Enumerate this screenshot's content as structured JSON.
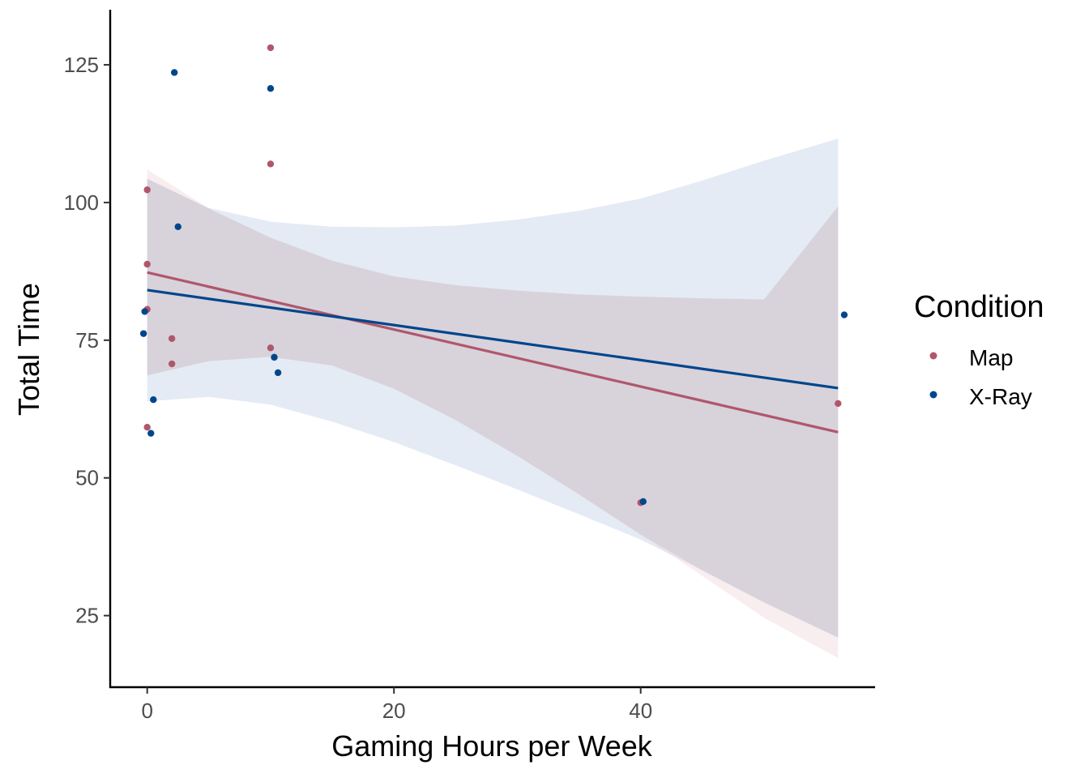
{
  "chart_data": {
    "type": "scatter",
    "title": "",
    "xlabel": "Gaming Hours per Week",
    "ylabel": "Total Time",
    "xlim": [
      -3,
      59
    ],
    "ylim": [
      12,
      135
    ],
    "x_ticks": [
      0,
      20,
      40
    ],
    "x_tick_labels": [
      "0",
      "20",
      "40"
    ],
    "y_ticks": [
      25,
      50,
      75,
      100,
      125
    ],
    "y_tick_labels": [
      "25",
      "50",
      "75",
      "100",
      "125"
    ],
    "grid": false,
    "legend": {
      "title": "Condition",
      "position": "right",
      "entries": [
        "Map",
        "X-Ray"
      ]
    },
    "series": [
      {
        "name": "Map",
        "color": "#b0576b",
        "points": [
          {
            "x": 0,
            "y": 102.3
          },
          {
            "x": 0,
            "y": 88.8
          },
          {
            "x": 0,
            "y": 80.6
          },
          {
            "x": 0,
            "y": 59.2
          },
          {
            "x": 2,
            "y": 75.3
          },
          {
            "x": 2,
            "y": 70.7
          },
          {
            "x": 10,
            "y": 128.1
          },
          {
            "x": 10,
            "y": 107.0
          },
          {
            "x": 10,
            "y": 73.6
          },
          {
            "x": 40,
            "y": 45.5
          },
          {
            "x": 56,
            "y": 63.5
          }
        ],
        "fit": {
          "x": [
            0,
            56
          ],
          "y": [
            87.3,
            58.3
          ]
        },
        "ci": {
          "x": [
            0,
            5,
            10,
            15,
            20,
            25,
            30,
            35,
            40,
            45,
            50,
            56
          ],
          "lower": [
            68.6,
            71.2,
            72.0,
            70.4,
            66.2,
            60.5,
            54.0,
            47.0,
            39.7,
            32.2,
            24.6,
            17.3
          ],
          "upper": [
            106.0,
            98.9,
            93.6,
            89.4,
            86.6,
            85.0,
            84.0,
            83.3,
            82.9,
            82.6,
            82.4,
            99.3
          ]
        }
      },
      {
        "name": "X-Ray",
        "color": "#00468b",
        "points": [
          {
            "x": -0.2,
            "y": 80.2
          },
          {
            "x": -0.3,
            "y": 76.2
          },
          {
            "x": 0.3,
            "y": 58.1
          },
          {
            "x": 0.5,
            "y": 64.2
          },
          {
            "x": 2.2,
            "y": 123.6
          },
          {
            "x": 2.5,
            "y": 95.6
          },
          {
            "x": 10,
            "y": 120.7
          },
          {
            "x": 10.3,
            "y": 71.9
          },
          {
            "x": 10.6,
            "y": 69.1
          },
          {
            "x": 40.2,
            "y": 45.7
          },
          {
            "x": 56.5,
            "y": 79.6
          }
        ],
        "fit": {
          "x": [
            0,
            56
          ],
          "y": [
            84.1,
            66.3
          ]
        },
        "ci": {
          "x": [
            0,
            5,
            10,
            15,
            20,
            25,
            30,
            35,
            40,
            45,
            50,
            56
          ],
          "lower": [
            63.9,
            64.7,
            63.3,
            60.2,
            56.5,
            52.3,
            47.9,
            43.4,
            38.8,
            33.2,
            27.4,
            21.0
          ],
          "upper": [
            104.3,
            99.0,
            96.5,
            95.6,
            95.5,
            95.8,
            96.9,
            98.5,
            100.7,
            104.0,
            107.6,
            111.6
          ]
        }
      }
    ]
  }
}
